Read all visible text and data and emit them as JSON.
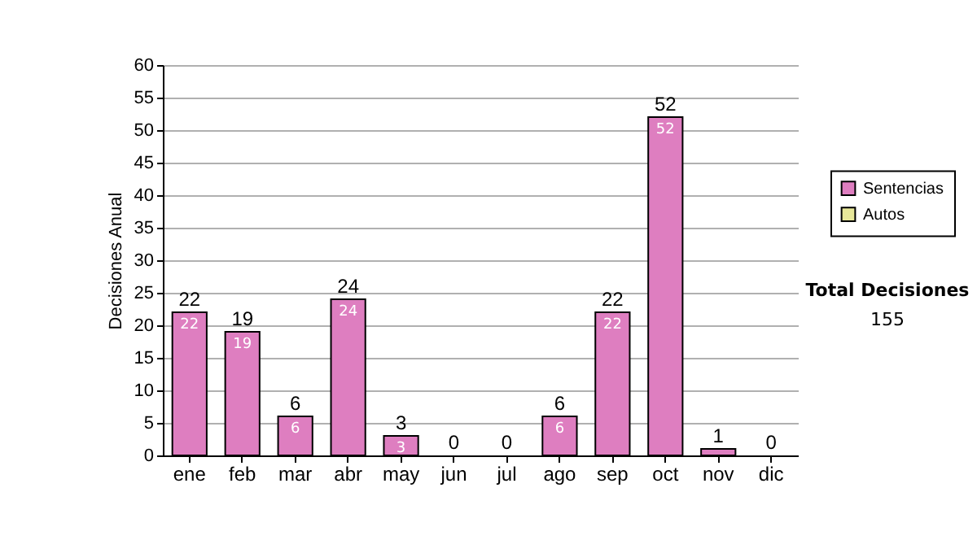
{
  "chart_data": {
    "type": "bar",
    "stacked": true,
    "ylabel": "Decisiones Anual",
    "categories": [
      "ene",
      "feb",
      "mar",
      "abr",
      "may",
      "jun",
      "jul",
      "ago",
      "sep",
      "oct",
      "nov",
      "dic"
    ],
    "series": [
      {
        "name": "Sentencias",
        "color": "#de7ec0",
        "values": [
          22,
          19,
          6,
          24,
          3,
          0,
          0,
          6,
          22,
          52,
          1,
          0
        ],
        "value_labels": [
          "22",
          "19",
          "6",
          "24",
          "3",
          null,
          null,
          "6",
          "22",
          "52",
          null,
          null
        ]
      },
      {
        "name": "Autos",
        "color": "#e8e89a",
        "values": [
          0,
          0,
          0,
          0,
          0,
          0,
          0,
          0,
          0,
          0,
          0,
          0
        ]
      }
    ],
    "totals": [
      "22",
      "19",
      "6",
      "24",
      "3",
      "0",
      "0",
      "6",
      "22",
      "52",
      "1",
      "0"
    ],
    "ylim": [
      0,
      60
    ],
    "yticks": [
      0,
      5,
      10,
      15,
      20,
      25,
      30,
      35,
      40,
      45,
      50,
      55,
      60
    ],
    "grid": "y",
    "legend": "right",
    "annotations": [
      "Total Decisiones",
      "155"
    ]
  }
}
